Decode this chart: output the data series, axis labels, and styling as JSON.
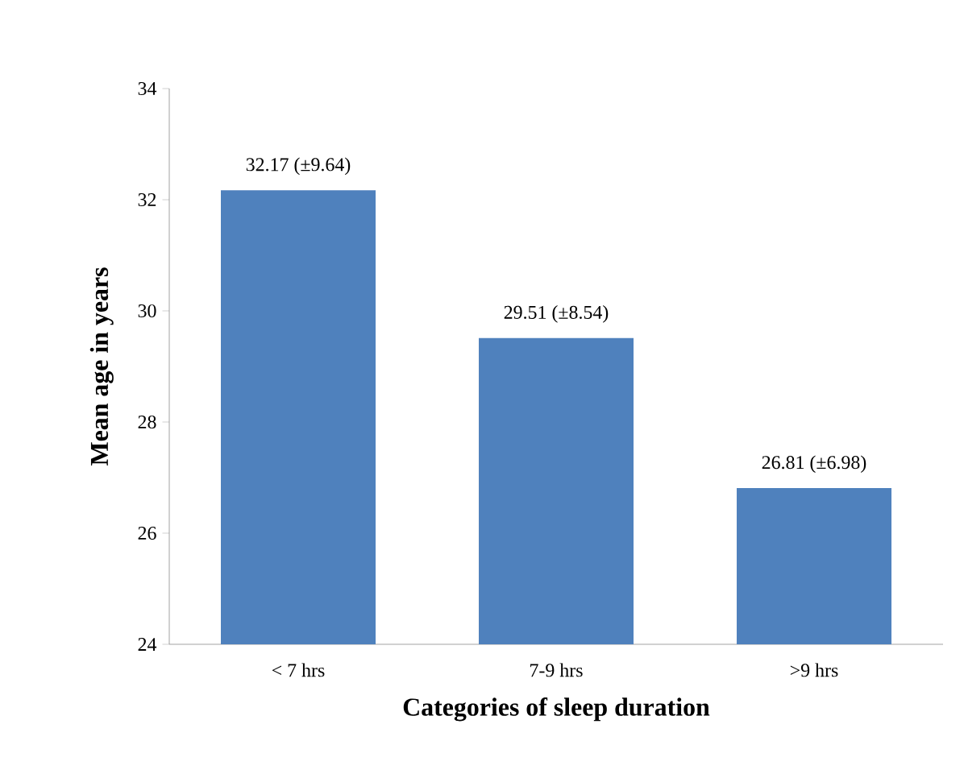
{
  "chart_data": {
    "type": "bar",
    "xlabel": "Categories of sleep duration",
    "ylabel": "Mean age in years",
    "categories": [
      "< 7 hrs",
      "7-9 hrs",
      ">9 hrs"
    ],
    "values": [
      32.17,
      29.51,
      26.81
    ],
    "value_labels": [
      "32.17 (±9.64)",
      "29.51 (±8.54)",
      "26.81 (±6.98)"
    ],
    "color": "#4f81bd",
    "ylim": [
      24,
      34
    ],
    "yticks": [
      24,
      26,
      28,
      30,
      32,
      34
    ]
  }
}
